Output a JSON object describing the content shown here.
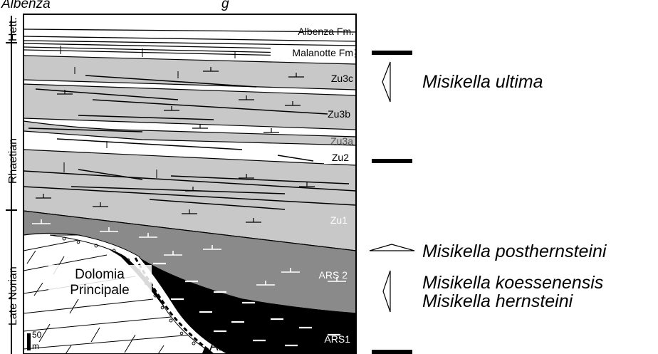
{
  "header": {
    "clipped_caption": "Albenza",
    "clipped_caption_2": "g"
  },
  "stages": {
    "hett": "Hett.",
    "rhaetian": "Rhaetian",
    "late_norian": "Late Norian"
  },
  "units": {
    "albenza": "Albenza Fm.",
    "malanotte": "Malanotte Fm",
    "zu3c": "Zu3c",
    "zu3b": "Zu3b",
    "zu3a": "Zu3a",
    "zu2": "Zu2",
    "zu1": "Zu1",
    "ars2": "ARS 2",
    "ars1": "ARS1",
    "dolomia_line1": "Dolomia",
    "dolomia_line2": "Principale",
    "ar": "AR"
  },
  "scale": {
    "value": "50",
    "unit": "m"
  },
  "taxa": {
    "ultima": "Misikella ultima",
    "posthernsteini": "Misikella posthernsteini",
    "koessenensis": "Misikella koessenensis",
    "hernsteini": "Misikella hernsteini"
  },
  "colors": {
    "light_gray": "#c8c8c8",
    "mid_gray": "#8a8a8a",
    "black": "#000000",
    "white": "#ffffff"
  }
}
